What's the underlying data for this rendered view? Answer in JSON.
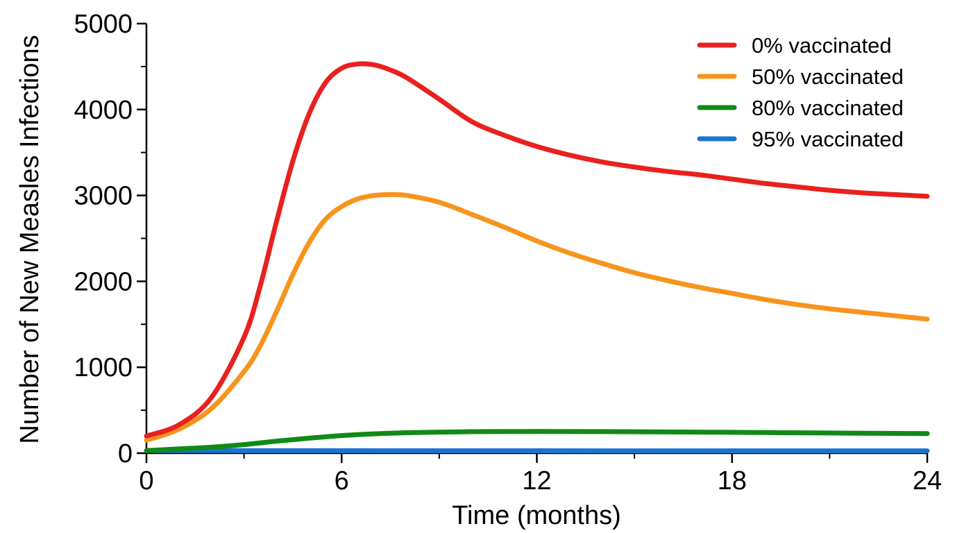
{
  "chart_data": {
    "type": "line",
    "title": "",
    "xlabel": "Time (months)",
    "ylabel": "Number of New Measles Infections",
    "xlim": [
      0,
      24
    ],
    "ylim": [
      0,
      5000
    ],
    "x_ticks": [
      0,
      6,
      12,
      18,
      24
    ],
    "x_tick_labels": [
      "0",
      "6",
      "12",
      "18",
      "24"
    ],
    "y_ticks": [
      0,
      1000,
      2000,
      3000,
      4000,
      5000
    ],
    "y_tick_labels": [
      "0",
      "1000",
      "2000",
      "3000",
      "4000",
      "5000"
    ],
    "grid": false,
    "legend_position": "top-right",
    "series": [
      {
        "name": "0% vaccinated",
        "color": "#e8211f",
        "x": [
          0,
          1,
          2,
          3,
          3.5,
          4,
          4.5,
          5,
          5.5,
          6,
          6.5,
          7,
          7.5,
          8,
          9,
          10,
          11,
          12,
          13,
          14,
          15,
          16,
          17,
          18,
          19,
          20,
          21,
          22,
          23,
          24
        ],
        "y": [
          200,
          330,
          650,
          1350,
          1950,
          2700,
          3400,
          3950,
          4310,
          4480,
          4530,
          4520,
          4460,
          4370,
          4120,
          3860,
          3700,
          3570,
          3470,
          3390,
          3330,
          3280,
          3240,
          3190,
          3140,
          3100,
          3060,
          3030,
          3010,
          2990
        ]
      },
      {
        "name": "50% vaccinated",
        "color": "#f7941d",
        "x": [
          0,
          1,
          2,
          3,
          3.5,
          4,
          4.5,
          5,
          5.5,
          6,
          6.5,
          7,
          7.5,
          8,
          9,
          10,
          11,
          12,
          13,
          14,
          15,
          16,
          17,
          18,
          19,
          20,
          21,
          22,
          23,
          24
        ],
        "y": [
          150,
          280,
          520,
          950,
          1250,
          1650,
          2080,
          2450,
          2720,
          2870,
          2960,
          3000,
          3010,
          3000,
          2920,
          2780,
          2630,
          2470,
          2330,
          2210,
          2100,
          2010,
          1930,
          1860,
          1790,
          1730,
          1680,
          1640,
          1600,
          1560
        ]
      },
      {
        "name": "80% vaccinated",
        "color": "#108a14",
        "x": [
          0,
          1,
          2,
          3,
          4,
          5,
          6,
          7,
          8,
          9,
          10,
          11,
          12,
          13,
          14,
          15,
          16,
          17,
          18,
          19,
          20,
          21,
          22,
          23,
          24
        ],
        "y": [
          30,
          50,
          70,
          100,
          140,
          175,
          205,
          225,
          238,
          245,
          250,
          252,
          253,
          252,
          251,
          249,
          247,
          245,
          243,
          240,
          237,
          235,
          232,
          230,
          228
        ]
      },
      {
        "name": "95% vaccinated",
        "color": "#1b75cf",
        "x": [
          0,
          6,
          12,
          18,
          24
        ],
        "y": [
          30,
          29,
          28,
          27,
          27
        ]
      }
    ]
  }
}
